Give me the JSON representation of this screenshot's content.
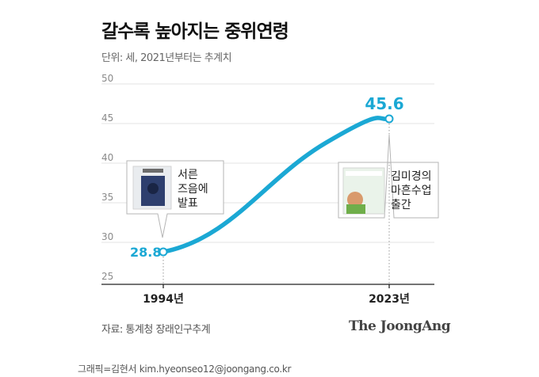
{
  "title": "갈수록 높아지는 중위연령",
  "unit_note": "단위: 세, 2021년부터는 추계치",
  "chart_data": {
    "type": "line",
    "x": [
      1994,
      2023
    ],
    "x_tick_labels": [
      "1994년",
      "2023년"
    ],
    "values": [
      28.8,
      45.6
    ],
    "value_labels": [
      "28.8",
      "45.6"
    ],
    "ylim": [
      25,
      50
    ],
    "yticks": [
      25,
      30,
      35,
      40,
      45,
      50
    ],
    "grid": true,
    "line_color": "#1ba8d4",
    "label_color": "#1ba8d4",
    "annotations": [
      {
        "x": 1994,
        "lines": [
          "서른",
          "즈음에",
          "발표"
        ]
      },
      {
        "x": 2023,
        "lines": [
          "김미경의",
          "마흔수업",
          "출간"
        ]
      }
    ]
  },
  "source": "자료: 통계청 장래인구추계",
  "brand": "The JoongAng",
  "credit": "그래픽=김현서 kim.hyeonseo12@joongang.co.kr"
}
